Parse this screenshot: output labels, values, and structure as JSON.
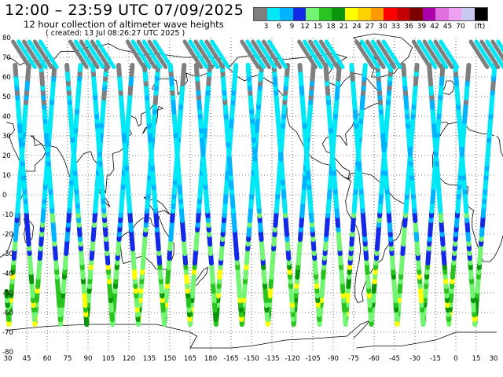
{
  "header": {
    "title": "12:00 – 23:59 UTC 07/09/2025",
    "subtitle": "12 hour collection of altimeter wave heights",
    "created": "( created: 13 Jul 08:26:27 UTC 2025 )"
  },
  "legend": {
    "colors": [
      "#7f7f7f",
      "#00e8f5",
      "#00b4ff",
      "#1429e6",
      "#73f573",
      "#29c41f",
      "#0a960a",
      "#ffff00",
      "#ffd200",
      "#ff9a00",
      "#ff0000",
      "#c40000",
      "#7a0000",
      "#aa00aa",
      "#e070e0",
      "#f0a0f0",
      "#c8c8f0",
      "#000000"
    ],
    "labels": [
      "3",
      "6",
      "9",
      "12",
      "15",
      "18",
      "21",
      "24",
      "27",
      "30",
      "33",
      "36",
      "39",
      "42",
      "45",
      "70",
      "(ft)"
    ],
    "unit": "(ft)"
  },
  "axes": {
    "lat_labels": [
      "80",
      "70",
      "60",
      "50",
      "40",
      "30",
      "20",
      "10",
      "0",
      "-10",
      "-20",
      "-30",
      "-40",
      "-50",
      "-60",
      "-70",
      "-80"
    ],
    "lon_labels": [
      "30",
      "45",
      "60",
      "75",
      "90",
      "105",
      "120",
      "135",
      "150",
      "165",
      "180",
      "-165",
      "-150",
      "-135",
      "-120",
      "-105",
      "-90",
      "-75",
      "-60",
      "-45",
      "-30",
      "-15",
      "0",
      "15",
      "30"
    ]
  },
  "map": {
    "projection": "equirectangular",
    "lon_range": [
      30,
      390
    ],
    "lat_range": [
      -80,
      80
    ],
    "grid": "dotted"
  }
}
